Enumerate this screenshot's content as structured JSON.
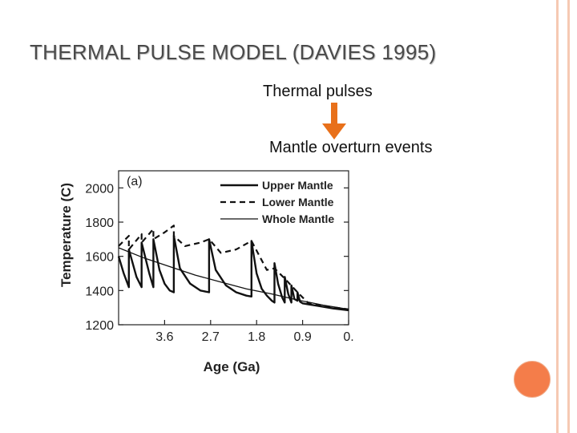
{
  "slide": {
    "title": "THERMAL PULSE MODEL (DAVIES 1995)",
    "caption_pulses": "Thermal pulses",
    "caption_overturn": "Mantle overturn events",
    "accent_color": "#e8701a",
    "rail_color": "#f6c9b3",
    "circle_color": "#f47d4a",
    "arrow_icon": "down-arrow-icon"
  },
  "chart_data": {
    "type": "line",
    "panel_label": "(a)",
    "xlabel": "Age (Ga)",
    "ylabel": "Temperature (C)",
    "x_reversed": true,
    "xlim": [
      4.5,
      0
    ],
    "ylim": [
      1200,
      2100
    ],
    "x_ticks": [
      3.6,
      2.7,
      1.8,
      0.9,
      0
    ],
    "x_tick_labels": [
      "3.6",
      "2.7",
      "1.8",
      "0.9",
      "0."
    ],
    "y_ticks": [
      1200,
      1400,
      1600,
      1800,
      2000
    ],
    "y_tick_labels": [
      "1200",
      "1400",
      "1600",
      "1800",
      "2000"
    ],
    "legend_position": "top-right",
    "grid": false,
    "series": [
      {
        "name": "Upper Mantle",
        "style": "solid-thick",
        "points": [
          [
            4.5,
            1600
          ],
          [
            4.4,
            1500
          ],
          [
            4.3,
            1420
          ],
          [
            4.3,
            1640
          ],
          [
            4.15,
            1480
          ],
          [
            4.05,
            1420
          ],
          [
            4.05,
            1680
          ],
          [
            3.9,
            1500
          ],
          [
            3.82,
            1420
          ],
          [
            3.82,
            1700
          ],
          [
            3.7,
            1520
          ],
          [
            3.6,
            1440
          ],
          [
            3.5,
            1400
          ],
          [
            3.42,
            1390
          ],
          [
            3.42,
            1720
          ],
          [
            3.3,
            1530
          ],
          [
            3.1,
            1440
          ],
          [
            2.9,
            1400
          ],
          [
            2.73,
            1390
          ],
          [
            2.73,
            1700
          ],
          [
            2.6,
            1520
          ],
          [
            2.4,
            1430
          ],
          [
            2.2,
            1390
          ],
          [
            2.0,
            1370
          ],
          [
            1.9,
            1365
          ],
          [
            1.9,
            1690
          ],
          [
            1.8,
            1500
          ],
          [
            1.7,
            1410
          ],
          [
            1.6,
            1370
          ],
          [
            1.5,
            1340
          ],
          [
            1.45,
            1330
          ],
          [
            1.45,
            1560
          ],
          [
            1.38,
            1440
          ],
          [
            1.3,
            1360
          ],
          [
            1.25,
            1330
          ],
          [
            1.25,
            1480
          ],
          [
            1.18,
            1380
          ],
          [
            1.12,
            1330
          ],
          [
            1.12,
            1430
          ],
          [
            1.06,
            1350
          ],
          [
            1.0,
            1340
          ],
          [
            1.0,
            1390
          ],
          [
            0.95,
            1335
          ],
          [
            0.9,
            1325
          ],
          [
            0.6,
            1310
          ],
          [
            0.3,
            1295
          ],
          [
            0.0,
            1285
          ]
        ]
      },
      {
        "name": "Lower Mantle",
        "style": "dashed",
        "points": [
          [
            4.5,
            1660
          ],
          [
            4.3,
            1720
          ],
          [
            4.3,
            1640
          ],
          [
            4.05,
            1730
          ],
          [
            4.05,
            1680
          ],
          [
            3.82,
            1760
          ],
          [
            3.82,
            1700
          ],
          [
            3.6,
            1740
          ],
          [
            3.42,
            1780
          ],
          [
            3.42,
            1720
          ],
          [
            3.2,
            1660
          ],
          [
            2.9,
            1680
          ],
          [
            2.73,
            1700
          ],
          [
            2.5,
            1620
          ],
          [
            2.2,
            1640
          ],
          [
            1.9,
            1690
          ],
          [
            1.6,
            1520
          ],
          [
            1.45,
            1530
          ],
          [
            1.25,
            1470
          ],
          [
            1.0,
            1390
          ],
          [
            0.8,
            1330
          ],
          [
            0.5,
            1310
          ],
          [
            0.0,
            1290
          ]
        ]
      },
      {
        "name": "Whole Mantle",
        "style": "solid-thin",
        "points": [
          [
            4.5,
            1650
          ],
          [
            4.0,
            1590
          ],
          [
            3.5,
            1540
          ],
          [
            3.0,
            1490
          ],
          [
            2.5,
            1450
          ],
          [
            2.0,
            1410
          ],
          [
            1.5,
            1380
          ],
          [
            1.0,
            1345
          ],
          [
            0.5,
            1315
          ],
          [
            0.0,
            1290
          ]
        ]
      }
    ]
  }
}
